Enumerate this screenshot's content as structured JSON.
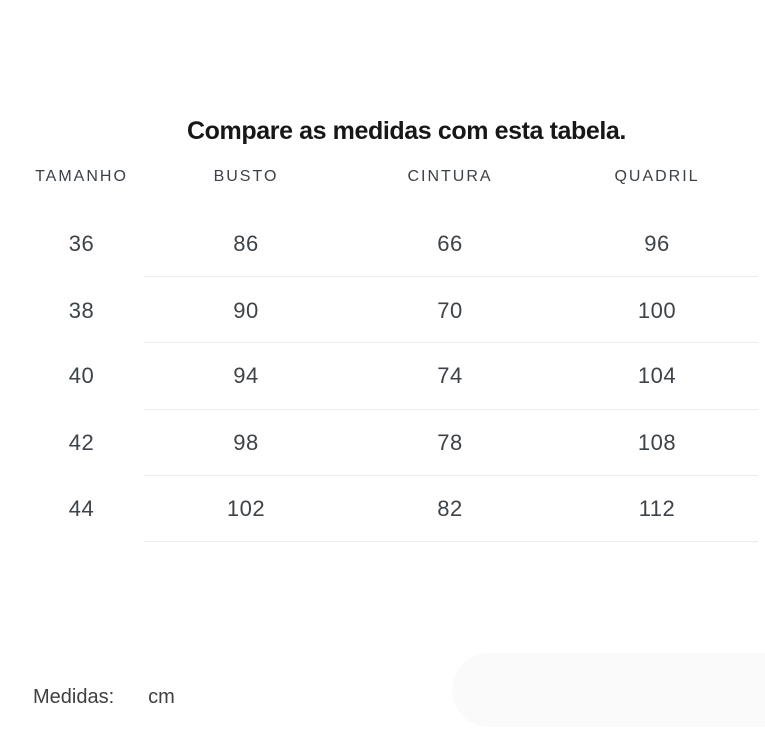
{
  "title": "Compare as medidas com esta tabela.",
  "table": {
    "headers": [
      "TAMANHO",
      "BUSTO",
      "CINTURA",
      "QUADRIL"
    ],
    "rows": [
      {
        "tamanho": "36",
        "busto": "86",
        "cintura": "66",
        "quadril": "96"
      },
      {
        "tamanho": "38",
        "busto": "90",
        "cintura": "70",
        "quadril": "100"
      },
      {
        "tamanho": "40",
        "busto": "94",
        "cintura": "74",
        "quadril": "104"
      },
      {
        "tamanho": "42",
        "busto": "98",
        "cintura": "78",
        "quadril": "108"
      },
      {
        "tamanho": "44",
        "busto": "102",
        "cintura": "82",
        "quadril": "112"
      }
    ]
  },
  "footer": {
    "label": "Medidas:",
    "unit": "cm"
  },
  "colors": {
    "title_text": "#171717",
    "header_text": "#3c4147",
    "cell_text": "#3e4348",
    "divider": "#ececec",
    "pill_background": "#fafafa",
    "page_background": "#ffffff"
  }
}
